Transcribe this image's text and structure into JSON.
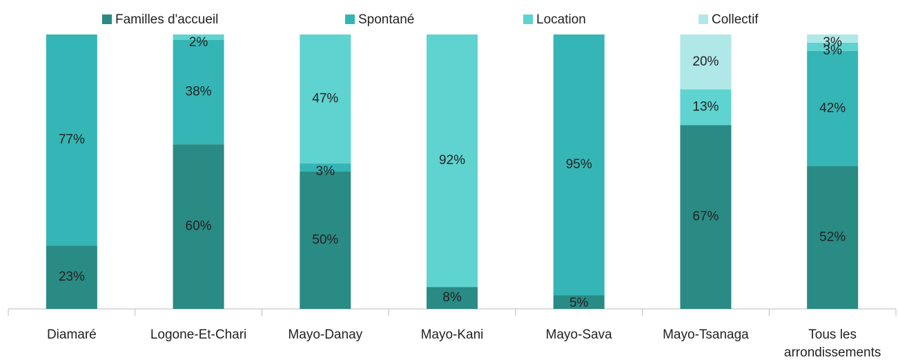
{
  "chart_data": {
    "type": "stacked_bar",
    "categories": [
      "Diamaré",
      "Logone-Et-Chari",
      "Mayo-Danay",
      "Mayo-Kani",
      "Mayo-Sava",
      "Mayo-Tsanaga",
      "Tous les arrondissements"
    ],
    "series": [
      {
        "name": "Familles d'accueil",
        "color": "#2a8a84",
        "values": [
          23,
          60,
          50,
          8,
          5,
          67,
          52
        ],
        "value_labels": [
          "23%",
          "60%",
          "50%",
          "8%",
          "5%",
          "67%",
          "52%"
        ]
      },
      {
        "name": "Spontané",
        "color": "#35b5b5",
        "values": [
          77,
          38,
          3,
          null,
          95,
          null,
          42
        ],
        "value_labels": [
          "77%",
          "38%",
          "3%",
          null,
          "95%",
          null,
          "42%"
        ]
      },
      {
        "name": "Location",
        "color": "#5fd3cf",
        "values": [
          null,
          2,
          47,
          92,
          null,
          13,
          3
        ],
        "value_labels": [
          null,
          "2%",
          "47%",
          "92%",
          null,
          "13%",
          "3%"
        ]
      },
      {
        "name": "Collectif",
        "color": "#b0e8e8",
        "values": [
          null,
          null,
          null,
          null,
          null,
          20,
          3
        ],
        "value_labels": [
          null,
          null,
          null,
          null,
          null,
          "20%",
          "3%"
        ]
      }
    ],
    "ylim": [
      0,
      100
    ]
  }
}
